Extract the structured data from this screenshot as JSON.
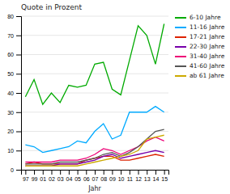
{
  "chart_data": {
    "type": "line",
    "title": "Quote in Prozent",
    "x_label": "Jahr",
    "categories": [
      "97",
      "99",
      "01",
      "02",
      "03",
      "04",
      "05",
      "06",
      "07",
      "08",
      "09",
      "10",
      "11",
      "12",
      "13",
      "14",
      "15"
    ],
    "series": [
      {
        "name": "6-10 Jahre",
        "color": "#00aa00",
        "values": [
          38,
          47,
          34,
          40,
          35,
          44,
          43,
          44,
          55,
          56,
          42,
          39,
          57,
          75,
          70,
          55,
          76
        ]
      },
      {
        "name": "11-16 Jahre",
        "color": "#00aaff",
        "values": [
          13,
          12,
          9,
          10,
          11,
          12,
          15,
          14,
          20,
          24,
          16,
          18,
          30,
          30,
          30,
          33,
          30
        ]
      },
      {
        "name": "17-21 Jahre",
        "color": "#dd2200",
        "values": [
          3,
          4,
          3,
          3,
          3,
          3,
          3,
          5,
          6,
          7,
          7,
          5,
          5,
          6,
          7,
          8,
          7
        ]
      },
      {
        "name": "22-30 Jahre",
        "color": "#7700aa",
        "values": [
          2,
          2,
          2,
          2,
          3,
          3,
          3,
          4,
          5,
          7,
          8,
          6,
          7,
          8,
          9,
          10,
          9
        ]
      },
      {
        "name": "31-40 Jahre",
        "color": "#ee0077",
        "values": [
          4,
          4,
          4,
          4,
          5,
          5,
          5,
          6,
          8,
          11,
          10,
          8,
          10,
          12,
          15,
          17,
          15
        ]
      },
      {
        "name": "41-60 Jahre",
        "color": "#555555",
        "values": [
          3,
          3,
          3,
          3,
          4,
          4,
          4,
          5,
          6,
          8,
          9,
          7,
          9,
          12,
          16,
          20,
          21
        ]
      },
      {
        "name": "ab 61 Jahre",
        "color": "#ccaa00",
        "values": [
          2,
          2,
          2,
          2,
          2,
          2,
          2,
          3,
          4,
          5,
          6,
          7,
          8,
          10,
          16,
          17,
          18
        ]
      }
    ],
    "ylim": [
      0,
      80
    ],
    "yticks": [
      0,
      10,
      20,
      30,
      40,
      50,
      60,
      70,
      80
    ],
    "grid": true,
    "legend": "right"
  }
}
